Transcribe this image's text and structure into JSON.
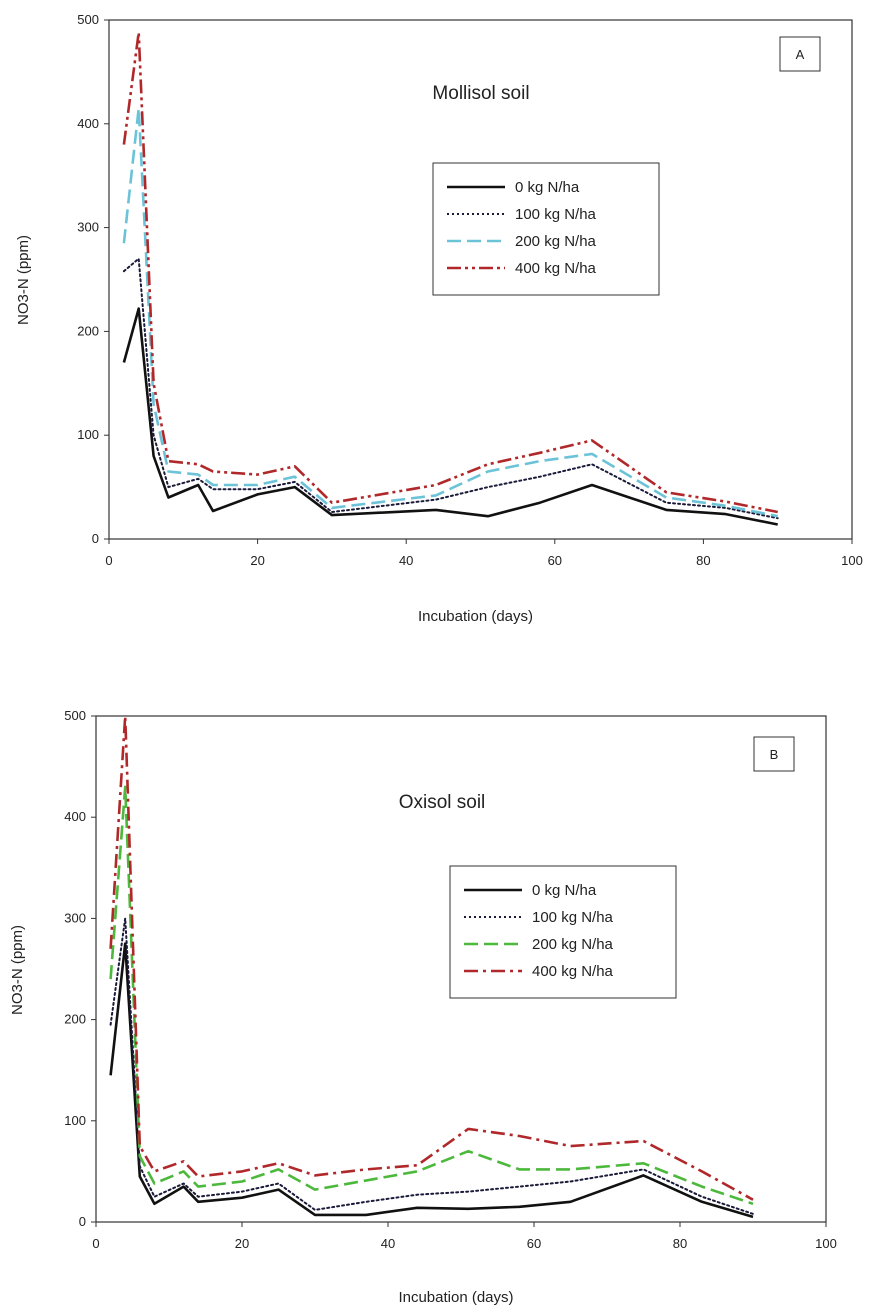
{
  "chart_data": [
    {
      "type": "line",
      "panel_label": "A",
      "title": "Mollisol soil",
      "xlabel": "Incubation (days)",
      "ylabel": "NO3-N (ppm)",
      "xlim": [
        0,
        100
      ],
      "ylim": [
        0,
        500
      ],
      "x_tick_labels": [
        "0",
        "20",
        "40",
        "60",
        "80",
        "100"
      ],
      "y_tick_labels": [
        "0",
        "100",
        "200",
        "300",
        "400",
        "500"
      ],
      "legend_position": "center-right",
      "series": [
        {
          "name": "0 kg N/ha",
          "color": "#111111",
          "style": "solid",
          "points": [
            [
              2,
              170
            ],
            [
              4,
              222
            ],
            [
              6,
              80
            ],
            [
              8,
              40
            ],
            [
              12,
              52
            ],
            [
              14,
              27
            ],
            [
              20,
              43
            ],
            [
              25,
              50
            ],
            [
              30,
              23
            ],
            [
              44,
              28
            ],
            [
              51,
              22
            ],
            [
              58,
              35
            ],
            [
              65,
              52
            ],
            [
              75,
              28
            ],
            [
              83,
              24
            ],
            [
              90,
              14
            ]
          ]
        },
        {
          "name": "100 kg N/ha",
          "color": "#1a1a3a",
          "style": "dotted",
          "points": [
            [
              2,
              258
            ],
            [
              4,
              270
            ],
            [
              6,
              100
            ],
            [
              8,
              50
            ],
            [
              12,
              58
            ],
            [
              14,
              48
            ],
            [
              20,
              48
            ],
            [
              25,
              55
            ],
            [
              30,
              26
            ],
            [
              44,
              38
            ],
            [
              51,
              50
            ],
            [
              58,
              60
            ],
            [
              65,
              72
            ],
            [
              75,
              35
            ],
            [
              83,
              30
            ],
            [
              90,
              20
            ]
          ]
        },
        {
          "name": "200 kg N/ha",
          "color": "#6cc3d8",
          "style": "dashed",
          "points": [
            [
              2,
              285
            ],
            [
              4,
              415
            ],
            [
              6,
              130
            ],
            [
              8,
              65
            ],
            [
              12,
              62
            ],
            [
              14,
              52
            ],
            [
              20,
              52
            ],
            [
              25,
              60
            ],
            [
              30,
              30
            ],
            [
              44,
              42
            ],
            [
              51,
              65
            ],
            [
              58,
              75
            ],
            [
              65,
              82
            ],
            [
              75,
              40
            ],
            [
              83,
              32
            ],
            [
              90,
              22
            ]
          ]
        },
        {
          "name": "400 kg N/ha",
          "color": "#b0282a",
          "style": "dashdotdot",
          "points": [
            [
              2,
              380
            ],
            [
              4,
              488
            ],
            [
              6,
              150
            ],
            [
              8,
              75
            ],
            [
              12,
              72
            ],
            [
              14,
              65
            ],
            [
              20,
              62
            ],
            [
              25,
              70
            ],
            [
              30,
              35
            ],
            [
              44,
              52
            ],
            [
              51,
              72
            ],
            [
              58,
              83
            ],
            [
              65,
              95
            ],
            [
              75,
              45
            ],
            [
              83,
              36
            ],
            [
              90,
              26
            ]
          ]
        }
      ]
    },
    {
      "type": "line",
      "panel_label": "B",
      "title": "Oxisol soil",
      "xlabel": "Incubation (days)",
      "ylabel": "NO3-N (ppm)",
      "xlim": [
        0,
        100
      ],
      "ylim": [
        0,
        500
      ],
      "x_tick_labels": [
        "0",
        "20",
        "40",
        "60",
        "80",
        "100"
      ],
      "y_tick_labels": [
        "0",
        "100",
        "200",
        "300",
        "400",
        "500"
      ],
      "legend_position": "center-right",
      "series": [
        {
          "name": "0 kg N/ha",
          "color": "#111111",
          "style": "solid",
          "points": [
            [
              2,
              145
            ],
            [
              4,
              275
            ],
            [
              6,
              45
            ],
            [
              8,
              18
            ],
            [
              12,
              35
            ],
            [
              14,
              20
            ],
            [
              20,
              24
            ],
            [
              25,
              32
            ],
            [
              30,
              7
            ],
            [
              37,
              7
            ],
            [
              44,
              14
            ],
            [
              51,
              13
            ],
            [
              58,
              15
            ],
            [
              65,
              20
            ],
            [
              75,
              46
            ],
            [
              83,
              20
            ],
            [
              90,
              5
            ]
          ]
        },
        {
          "name": "100 kg N/ha",
          "color": "#1a1a3a",
          "style": "dotted",
          "points": [
            [
              2,
              195
            ],
            [
              4,
              300
            ],
            [
              6,
              55
            ],
            [
              8,
              25
            ],
            [
              12,
              38
            ],
            [
              14,
              25
            ],
            [
              20,
              30
            ],
            [
              25,
              38
            ],
            [
              30,
              12
            ],
            [
              37,
              20
            ],
            [
              44,
              27
            ],
            [
              51,
              30
            ],
            [
              58,
              35
            ],
            [
              65,
              40
            ],
            [
              75,
              52
            ],
            [
              83,
              25
            ],
            [
              90,
              8
            ]
          ]
        },
        {
          "name": "200 kg N/ha",
          "color": "#4cb83c",
          "style": "dashed",
          "points": [
            [
              2,
              240
            ],
            [
              4,
              430
            ],
            [
              6,
              65
            ],
            [
              8,
              38
            ],
            [
              12,
              50
            ],
            [
              14,
              35
            ],
            [
              20,
              40
            ],
            [
              25,
              52
            ],
            [
              30,
              32
            ],
            [
              44,
              50
            ],
            [
              51,
              70
            ],
            [
              58,
              52
            ],
            [
              65,
              52
            ],
            [
              75,
              58
            ],
            [
              83,
              35
            ],
            [
              90,
              18
            ]
          ]
        },
        {
          "name": "400 kg N/ha",
          "color": "#b0282a",
          "style": "dashdot",
          "points": [
            [
              2,
              270
            ],
            [
              4,
              500
            ],
            [
              6,
              75
            ],
            [
              8,
              50
            ],
            [
              12,
              60
            ],
            [
              14,
              45
            ],
            [
              20,
              50
            ],
            [
              25,
              58
            ],
            [
              30,
              46
            ],
            [
              37,
              52
            ],
            [
              44,
              56
            ],
            [
              51,
              92
            ],
            [
              58,
              85
            ],
            [
              65,
              75
            ],
            [
              75,
              80
            ],
            [
              83,
              50
            ],
            [
              90,
              22
            ]
          ]
        }
      ]
    }
  ]
}
